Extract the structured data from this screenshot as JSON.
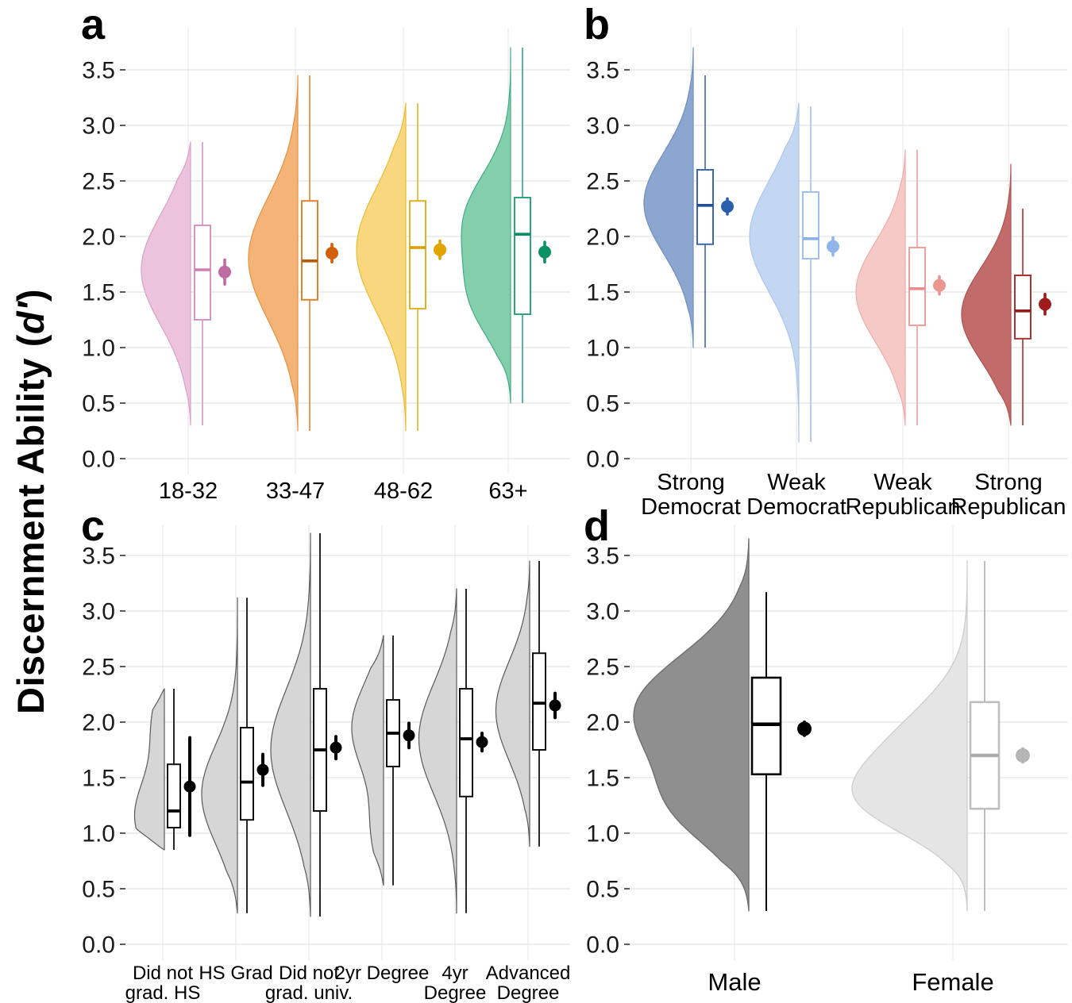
{
  "figure": {
    "y_title_prefix": "Discernment Ability (",
    "y_title_d": "d′",
    "y_title_suffix": ")",
    "y_axis_title": "Discernment Ability (d′)",
    "background": "#ffffff",
    "grid_color": "#E8E8E8",
    "axis_text_color": "#1a1a1a",
    "y_ticks": [
      0,
      0.5,
      1,
      1.5,
      2,
      2.5,
      3,
      3.5
    ]
  },
  "chart_data": [
    {
      "panel": "a",
      "type": "raincloud (half-violin + boxplot + mean with 95% CI)",
      "ylim": [
        0,
        3.7
      ],
      "grid": true,
      "categories": [
        "18-32",
        "33-47",
        "48-62",
        "63+"
      ],
      "label_lines": [
        [
          "18-32"
        ],
        [
          "33-47"
        ],
        [
          "48-62"
        ],
        [
          "63+"
        ]
      ],
      "groups": [
        {
          "label": "18-32",
          "fill": "#EBC3DC",
          "stroke": "#DCA0CA",
          "box_color": "#D795C5",
          "median_color": "#CE7FB5",
          "point_color": "#C06CA4",
          "violin": {
            "min": 0.3,
            "max": 2.85,
            "scale": 1,
            "peaks": [
              {
                "y": 1.7,
                "h": 1,
                "s": 0.5
              }
            ]
          },
          "box": {
            "whisker_low": 0.3,
            "q1": 1.25,
            "median": 1.7,
            "q3": 2.1,
            "whisker_high": 2.85
          },
          "mean": {
            "value": 1.68,
            "ci_low": 1.57,
            "ci_high": 1.79
          }
        },
        {
          "label": "33-47",
          "fill": "#F4B377",
          "stroke": "#E6913F",
          "box_color": "#E0832B",
          "median_color": "#B85B09",
          "point_color": "#D2600A",
          "violin": {
            "min": 0.25,
            "max": 3.45,
            "scale": 1,
            "peaks": [
              {
                "y": 1.8,
                "h": 1,
                "s": 0.55
              }
            ]
          },
          "box": {
            "whisker_low": 0.25,
            "q1": 1.43,
            "median": 1.78,
            "q3": 2.32,
            "whisker_high": 3.45
          },
          "mean": {
            "value": 1.85,
            "ci_low": 1.77,
            "ci_high": 1.93
          }
        },
        {
          "label": "48-62",
          "fill": "#F8D77E",
          "stroke": "#EBBB35",
          "box_color": "#E6B222",
          "median_color": "#D99E00",
          "point_color": "#E3A400",
          "violin": {
            "min": 0.25,
            "max": 3.2,
            "scale": 1,
            "peaks": [
              {
                "y": 1.88,
                "h": 1,
                "s": 0.55
              }
            ]
          },
          "box": {
            "whisker_low": 0.25,
            "q1": 1.35,
            "median": 1.9,
            "q3": 2.32,
            "whisker_high": 3.2
          },
          "mean": {
            "value": 1.88,
            "ci_low": 1.8,
            "ci_high": 1.96
          }
        },
        {
          "label": "63+",
          "fill": "#83CFAC",
          "stroke": "#41AE84",
          "box_color": "#2FA67A",
          "median_color": "#0B8F62",
          "point_color": "#0C9164",
          "violin": {
            "min": 0.5,
            "max": 3.7,
            "scale": 1,
            "peaks": [
              {
                "y": 2.15,
                "h": 1,
                "s": 0.42
              },
              {
                "y": 1.4,
                "h": 0.72,
                "s": 0.35
              }
            ]
          },
          "box": {
            "whisker_low": 0.5,
            "q1": 1.3,
            "median": 2.02,
            "q3": 2.35,
            "whisker_high": 3.7
          },
          "mean": {
            "value": 1.86,
            "ci_low": 1.77,
            "ci_high": 1.95
          }
        }
      ]
    },
    {
      "panel": "b",
      "type": "raincloud (half-violin + boxplot + mean with 95% CI)",
      "ylim": [
        0,
        3.7
      ],
      "grid": true,
      "categories": [
        "Strong Democrat",
        "Weak Democrat",
        "Weak Republican",
        "Strong Republican"
      ],
      "label_lines": [
        [
          "Strong",
          "Democrat"
        ],
        [
          "Weak",
          "Democrat"
        ],
        [
          "Weak",
          "Republican"
        ],
        [
          "Strong",
          "Republican"
        ]
      ],
      "groups": [
        {
          "label": "Strong Democrat",
          "fill": "#8CA7CF",
          "stroke": "#6E8FC2",
          "box_color": "#3C68AE",
          "median_color": "#1D4F9C",
          "point_color": "#2B5FAE",
          "violin": {
            "min": 1.0,
            "max": 3.7,
            "scale": 1,
            "peaks": [
              {
                "y": 2.3,
                "h": 1,
                "s": 0.45
              }
            ]
          },
          "box": {
            "whisker_low": 1.0,
            "q1": 1.93,
            "median": 2.28,
            "q3": 2.6,
            "whisker_high": 3.45
          },
          "mean": {
            "value": 2.27,
            "ci_low": 2.2,
            "ci_high": 2.34
          }
        },
        {
          "label": "Weak Democrat",
          "fill": "#C3D7F2",
          "stroke": "#A9C6EC",
          "box_color": "#9FC0EA",
          "median_color": "#88B2E8",
          "point_color": "#8FB7EC",
          "violin": {
            "min": 0.15,
            "max": 3.2,
            "scale": 1,
            "peaks": [
              {
                "y": 2.0,
                "h": 1,
                "s": 0.5
              }
            ]
          },
          "box": {
            "whisker_low": 0.15,
            "q1": 1.8,
            "median": 1.98,
            "q3": 2.4,
            "whisker_high": 3.17
          },
          "mean": {
            "value": 1.91,
            "ci_low": 1.83,
            "ci_high": 1.99
          }
        },
        {
          "label": "Weak Republican",
          "fill": "#F5C9C6",
          "stroke": "#EFABA7",
          "box_color": "#ECA09C",
          "median_color": "#E88D88",
          "point_color": "#EC9691",
          "violin": {
            "min": 0.3,
            "max": 2.78,
            "scale": 1,
            "peaks": [
              {
                "y": 1.5,
                "h": 1,
                "s": 0.45
              }
            ]
          },
          "box": {
            "whisker_low": 0.3,
            "q1": 1.2,
            "median": 1.53,
            "q3": 1.9,
            "whisker_high": 2.78
          },
          "mean": {
            "value": 1.56,
            "ci_low": 1.48,
            "ci_high": 1.64
          }
        },
        {
          "label": "Strong Republican",
          "fill": "#C26B6B",
          "stroke": "#B25252",
          "box_color": "#A63232",
          "median_color": "#8F1D1D",
          "point_color": "#9E1C1C",
          "violin": {
            "min": 0.3,
            "max": 2.65,
            "scale": 1,
            "peaks": [
              {
                "y": 1.3,
                "h": 1,
                "s": 0.42
              }
            ]
          },
          "box": {
            "whisker_low": 0.3,
            "q1": 1.08,
            "median": 1.33,
            "q3": 1.65,
            "whisker_high": 2.25
          },
          "mean": {
            "value": 1.39,
            "ci_low": 1.3,
            "ci_high": 1.48
          }
        }
      ]
    },
    {
      "panel": "c",
      "type": "raincloud (half-violin + boxplot + mean with 95% CI)",
      "ylim": [
        0,
        3.7
      ],
      "grid": true,
      "categories": [
        "Did not grad. HS",
        "HS Grad",
        "Did not grad. univ.",
        "2yr Degree",
        "4yr Degree",
        "Advanced Degree"
      ],
      "label_lines": [
        [
          "Did not",
          "grad. HS"
        ],
        [
          "HS Grad"
        ],
        [
          "Did not",
          "grad. univ."
        ],
        [
          "2yr Degree"
        ],
        [
          "4yr",
          "Degree"
        ],
        [
          "Advanced",
          "Degree"
        ]
      ],
      "groups": [
        {
          "label": "Did not grad. HS",
          "fill": "#D6D6D6",
          "stroke": "#5A5A5A",
          "box_color": "#111111",
          "median_color": "#000000",
          "point_color": "#000000",
          "violin": {
            "min": 0.85,
            "max": 2.3,
            "scale": 0.75,
            "peaks": [
              {
                "y": 1.15,
                "h": 1,
                "s": 0.35
              },
              {
                "y": 2.0,
                "h": 0.4,
                "s": 0.3
              }
            ]
          },
          "box": {
            "whisker_low": 0.85,
            "q1": 1.05,
            "median": 1.2,
            "q3": 1.62,
            "whisker_high": 2.3
          },
          "mean": {
            "value": 1.42,
            "ci_low": 0.98,
            "ci_high": 1.86
          }
        },
        {
          "label": "HS Grad",
          "fill": "#D6D6D6",
          "stroke": "#5A5A5A",
          "box_color": "#111111",
          "median_color": "#000000",
          "point_color": "#000000",
          "violin": {
            "min": 0.28,
            "max": 3.12,
            "scale": 0.9,
            "peaks": [
              {
                "y": 1.35,
                "h": 1,
                "s": 0.45
              }
            ]
          },
          "box": {
            "whisker_low": 0.28,
            "q1": 1.12,
            "median": 1.46,
            "q3": 1.95,
            "whisker_high": 3.12
          },
          "mean": {
            "value": 1.57,
            "ci_low": 1.43,
            "ci_high": 1.71
          }
        },
        {
          "label": "Did not grad. univ.",
          "fill": "#D6D6D6",
          "stroke": "#5A5A5A",
          "box_color": "#111111",
          "median_color": "#000000",
          "point_color": "#000000",
          "violin": {
            "min": 0.25,
            "max": 3.7,
            "scale": 1,
            "peaks": [
              {
                "y": 1.75,
                "h": 1,
                "s": 0.55
              }
            ]
          },
          "box": {
            "whisker_low": 0.25,
            "q1": 1.2,
            "median": 1.75,
            "q3": 2.3,
            "whisker_high": 3.7
          },
          "mean": {
            "value": 1.77,
            "ci_low": 1.67,
            "ci_high": 1.87
          }
        },
        {
          "label": "2yr Degree",
          "fill": "#D6D6D6",
          "stroke": "#5A5A5A",
          "box_color": "#111111",
          "median_color": "#000000",
          "point_color": "#000000",
          "violin": {
            "min": 0.53,
            "max": 2.78,
            "scale": 0.8,
            "peaks": [
              {
                "y": 1.95,
                "h": 1,
                "s": 0.4
              },
              {
                "y": 1.0,
                "h": 0.35,
                "s": 0.3
              }
            ]
          },
          "box": {
            "whisker_low": 0.53,
            "q1": 1.6,
            "median": 1.9,
            "q3": 2.2,
            "whisker_high": 2.78
          },
          "mean": {
            "value": 1.88,
            "ci_low": 1.77,
            "ci_high": 1.99
          }
        },
        {
          "label": "4yr Degree",
          "fill": "#D6D6D6",
          "stroke": "#5A5A5A",
          "box_color": "#111111",
          "median_color": "#000000",
          "point_color": "#000000",
          "violin": {
            "min": 0.28,
            "max": 3.2,
            "scale": 0.95,
            "peaks": [
              {
                "y": 1.85,
                "h": 1,
                "s": 0.5
              }
            ]
          },
          "box": {
            "whisker_low": 0.28,
            "q1": 1.33,
            "median": 1.85,
            "q3": 2.3,
            "whisker_high": 3.2
          },
          "mean": {
            "value": 1.82,
            "ci_low": 1.74,
            "ci_high": 1.9
          }
        },
        {
          "label": "Advanced Degree",
          "fill": "#D6D6D6",
          "stroke": "#5A5A5A",
          "box_color": "#111111",
          "median_color": "#000000",
          "point_color": "#000000",
          "violin": {
            "min": 0.88,
            "max": 3.45,
            "scale": 0.85,
            "peaks": [
              {
                "y": 2.1,
                "h": 1,
                "s": 0.45
              }
            ]
          },
          "box": {
            "whisker_low": 0.88,
            "q1": 1.75,
            "median": 2.17,
            "q3": 2.62,
            "whisker_high": 3.45
          },
          "mean": {
            "value": 2.15,
            "ci_low": 2.04,
            "ci_high": 2.26
          }
        }
      ]
    },
    {
      "panel": "d",
      "type": "raincloud (half-violin + boxplot + mean with 95% CI)",
      "ylim": [
        0,
        3.7
      ],
      "grid": true,
      "categories": [
        "Male",
        "Female"
      ],
      "label_lines": [
        [
          "Male"
        ],
        [
          "Female"
        ]
      ],
      "groups": [
        {
          "label": "Male",
          "fill": "#8F8F8F",
          "stroke": "#6F6F6F",
          "box_color": "#000000",
          "median_color": "#000000",
          "point_color": "#000000",
          "violin": {
            "min": 0.3,
            "max": 3.65,
            "scale": 1,
            "peaks": [
              {
                "y": 2.1,
                "h": 1,
                "s": 0.5
              },
              {
                "y": 1.2,
                "h": 0.5,
                "s": 0.35
              }
            ]
          },
          "box": {
            "whisker_low": 0.3,
            "q1": 1.53,
            "median": 1.98,
            "q3": 2.4,
            "whisker_high": 3.17
          },
          "mean": {
            "value": 1.94,
            "ci_low": 1.88,
            "ci_high": 2.0
          }
        },
        {
          "label": "Female",
          "fill": "#E5E5E5",
          "stroke": "#CFCFCF",
          "box_color": "#BFBFBF",
          "median_color": "#ACACAC",
          "point_color": "#B5B5B5",
          "violin": {
            "min": 0.3,
            "max": 3.45,
            "scale": 1,
            "peaks": [
              {
                "y": 1.7,
                "h": 1,
                "s": 0.45
              },
              {
                "y": 1.25,
                "h": 0.8,
                "s": 0.3
              }
            ]
          },
          "box": {
            "whisker_low": 0.3,
            "q1": 1.22,
            "median": 1.7,
            "q3": 2.18,
            "whisker_high": 3.45
          },
          "mean": {
            "value": 1.7,
            "ci_low": 1.64,
            "ci_high": 1.76
          }
        }
      ]
    }
  ]
}
